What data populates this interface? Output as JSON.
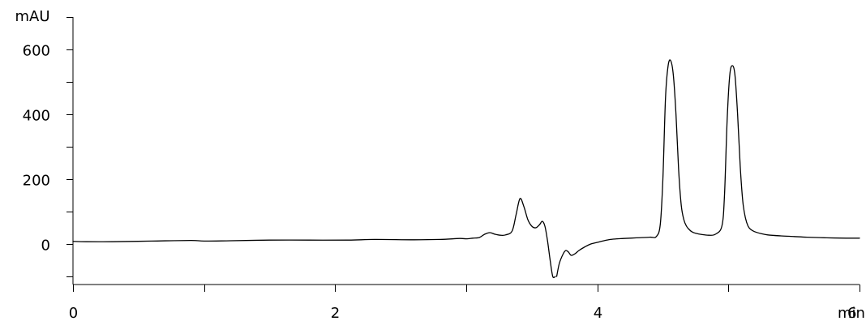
{
  "chart_data": {
    "type": "line",
    "title": "",
    "xlabel": "",
    "ylabel": "",
    "x_unit": "min",
    "y_unit": "mAU",
    "xlim": [
      0,
      6
    ],
    "ylim": [
      -125,
      700
    ],
    "x_ticks": [
      0,
      1,
      2,
      3,
      4,
      5,
      6
    ],
    "x_tick_labels": [
      "0",
      "",
      "2",
      "",
      "4",
      "",
      "6"
    ],
    "y_ticks": [
      -100,
      0,
      100,
      200,
      300,
      400,
      500,
      600,
      700
    ],
    "y_tick_labels": [
      "",
      "0",
      "",
      "200",
      "",
      "400",
      "",
      "600",
      ""
    ],
    "grid": false,
    "series": [
      {
        "x": [
          0,
          0.1,
          0.3,
          0.6,
          0.9,
          1.0,
          1.2,
          1.5,
          1.8,
          2.1,
          2.3,
          2.6,
          2.8,
          2.95,
          3.0,
          3.05,
          3.1,
          3.14,
          3.18,
          3.22,
          3.26,
          3.3,
          3.35,
          3.38,
          3.41,
          3.44,
          3.47,
          3.5,
          3.53,
          3.56,
          3.58,
          3.6,
          3.62,
          3.64,
          3.66,
          3.68
        ],
        "y": [
          8,
          7,
          7,
          9,
          11,
          9,
          10,
          12,
          12,
          12,
          14,
          13,
          14,
          17,
          16,
          18,
          20,
          30,
          35,
          30,
          27,
          28,
          40,
          90,
          140,
          115,
          75,
          55,
          50,
          60,
          70,
          55,
          10,
          -50,
          -100,
          -100
        ]
      },
      {
        "x": [
          3.69,
          3.71,
          3.74,
          3.76,
          3.78,
          3.8,
          3.83,
          3.86,
          3.9,
          3.95,
          4.0,
          4.05,
          4.1,
          4.15,
          4.2,
          4.3,
          4.4,
          4.45,
          4.48,
          4.5,
          4.52,
          4.54,
          4.56,
          4.58,
          4.6,
          4.62,
          4.64,
          4.66,
          4.68,
          4.7,
          4.72,
          4.75,
          4.8,
          4.85,
          4.9,
          4.95,
          4.97,
          4.99,
          5.01,
          5.03,
          5.05,
          5.07,
          5.09,
          5.11,
          5.13,
          5.15,
          5.17,
          5.2,
          5.25,
          5.3,
          5.4,
          5.5,
          5.6,
          5.75,
          5.9,
          6.0
        ],
        "y": [
          -100,
          -60,
          -30,
          -20,
          -25,
          -35,
          -30,
          -20,
          -10,
          0,
          5,
          10,
          14,
          16,
          17,
          19,
          21,
          23,
          60,
          200,
          450,
          550,
          565,
          520,
          400,
          230,
          120,
          75,
          55,
          45,
          38,
          33,
          29,
          27,
          30,
          55,
          150,
          380,
          520,
          550,
          520,
          400,
          240,
          130,
          80,
          55,
          45,
          38,
          32,
          28,
          25,
          23,
          21,
          19,
          18,
          18
        ]
      }
    ]
  }
}
